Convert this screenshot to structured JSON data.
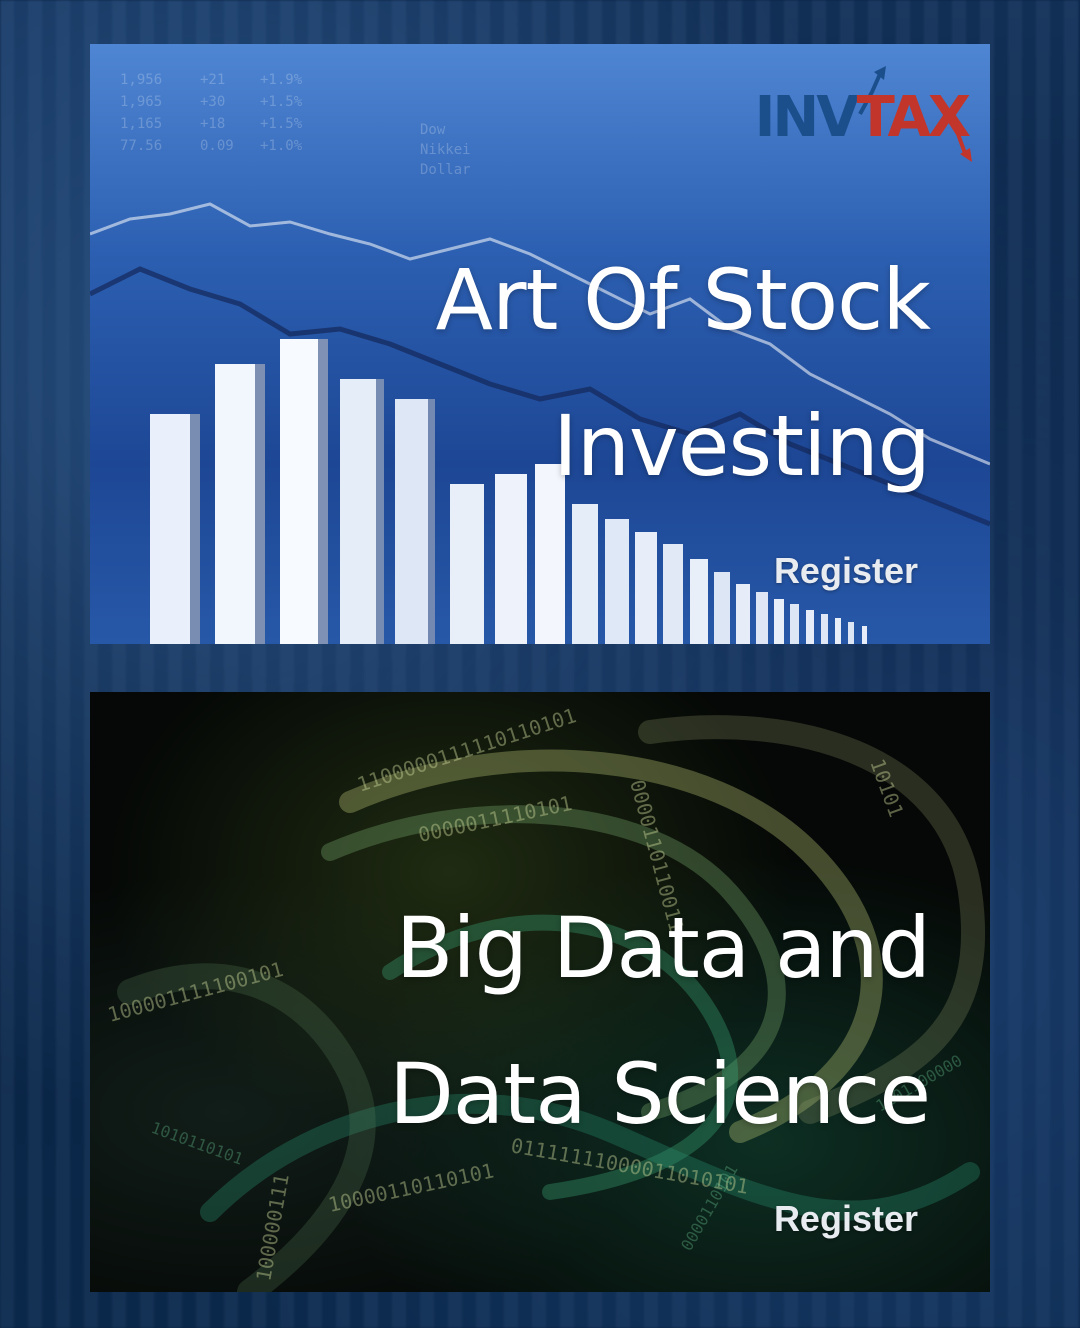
{
  "cards": [
    {
      "title_line1": "Art Of Stock",
      "title_line2": "Investing",
      "register_label": "Register",
      "logo": {
        "part1": "INV",
        "part2": "TAX"
      },
      "image": "stock-market-chart",
      "accent": "#2c5fb1"
    },
    {
      "title_line1": "Big Data and",
      "title_line2": "Data Science",
      "register_label": "Register",
      "image": "binary-code-swirl",
      "accent": "#0f6a4a"
    }
  ],
  "colors": {
    "logo_blue": "#1b4f8c",
    "logo_red": "#c2352b",
    "title_text": "#ffffff"
  }
}
